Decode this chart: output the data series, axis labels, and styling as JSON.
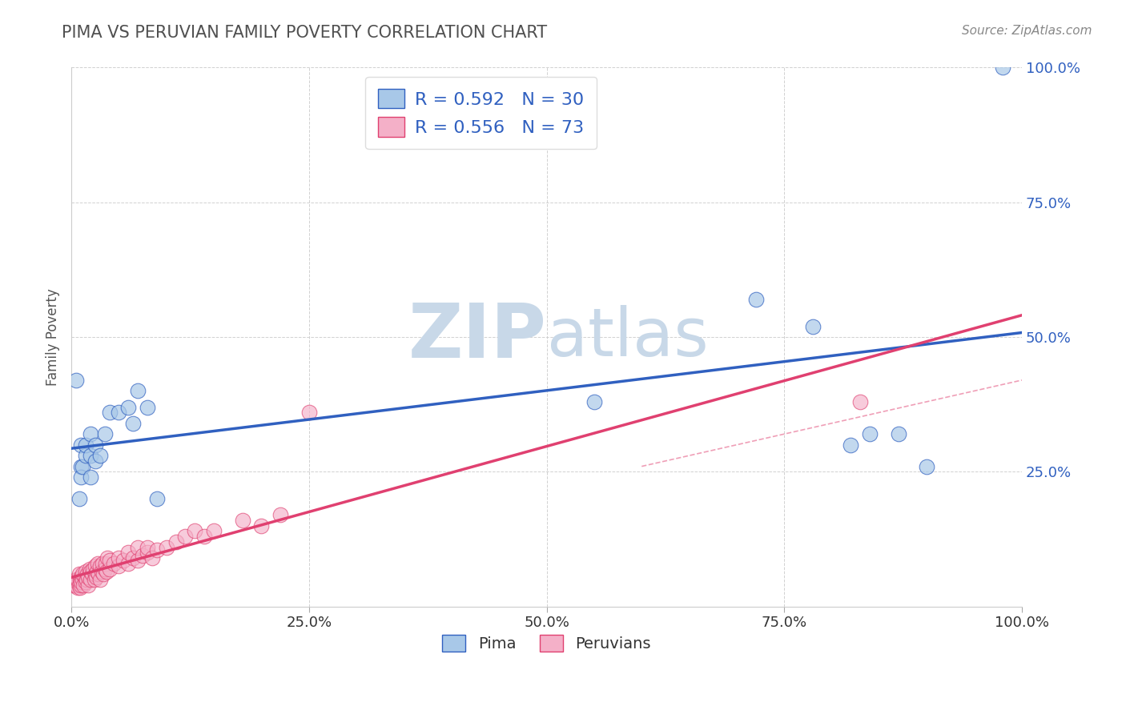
{
  "title": "PIMA VS PERUVIAN FAMILY POVERTY CORRELATION CHART",
  "source_text": "Source: ZipAtlas.com",
  "ylabel": "Family Poverty",
  "xlim": [
    0,
    1.0
  ],
  "ylim": [
    0,
    1.0
  ],
  "xticks": [
    0.0,
    0.25,
    0.5,
    0.75,
    1.0
  ],
  "yticks": [
    0.25,
    0.5,
    0.75,
    1.0
  ],
  "xticklabels": [
    "0.0%",
    "25.0%",
    "50.0%",
    "75.0%",
    "100.0%"
  ],
  "yticklabels": [
    "25.0%",
    "50.0%",
    "75.0%",
    "100.0%"
  ],
  "pima_R": 0.592,
  "pima_N": 30,
  "peruvian_R": 0.556,
  "peruvian_N": 73,
  "pima_color": "#a8c8e8",
  "peruvian_color": "#f4b0c8",
  "pima_line_color": "#3060c0",
  "peruvian_line_color": "#e04070",
  "legend_text_color": "#3060c0",
  "title_color": "#505050",
  "grid_color": "#cccccc",
  "watermark_color": "#c8d8e8",
  "background_color": "#ffffff",
  "pima_x": [
    0.005,
    0.008,
    0.01,
    0.01,
    0.01,
    0.012,
    0.015,
    0.015,
    0.02,
    0.02,
    0.02,
    0.025,
    0.025,
    0.03,
    0.035,
    0.04,
    0.05,
    0.06,
    0.065,
    0.07,
    0.08,
    0.09,
    0.55,
    0.72,
    0.78,
    0.82,
    0.84,
    0.87,
    0.9,
    0.98
  ],
  "pima_y": [
    0.42,
    0.2,
    0.26,
    0.24,
    0.3,
    0.26,
    0.28,
    0.3,
    0.24,
    0.28,
    0.32,
    0.27,
    0.3,
    0.28,
    0.32,
    0.36,
    0.36,
    0.37,
    0.34,
    0.4,
    0.37,
    0.2,
    0.38,
    0.57,
    0.52,
    0.3,
    0.32,
    0.32,
    0.26,
    1.0
  ],
  "peruvian_x": [
    0.002,
    0.003,
    0.004,
    0.005,
    0.005,
    0.006,
    0.007,
    0.007,
    0.008,
    0.008,
    0.009,
    0.009,
    0.01,
    0.01,
    0.01,
    0.012,
    0.012,
    0.013,
    0.014,
    0.015,
    0.015,
    0.016,
    0.017,
    0.018,
    0.018,
    0.019,
    0.02,
    0.02,
    0.022,
    0.023,
    0.024,
    0.025,
    0.025,
    0.026,
    0.027,
    0.028,
    0.029,
    0.03,
    0.03,
    0.032,
    0.033,
    0.034,
    0.035,
    0.036,
    0.037,
    0.038,
    0.04,
    0.04,
    0.045,
    0.05,
    0.05,
    0.055,
    0.06,
    0.06,
    0.065,
    0.07,
    0.07,
    0.075,
    0.08,
    0.08,
    0.085,
    0.09,
    0.1,
    0.11,
    0.12,
    0.13,
    0.14,
    0.15,
    0.18,
    0.2,
    0.22,
    0.25,
    0.83
  ],
  "peruvian_y": [
    0.04,
    0.04,
    0.04,
    0.05,
    0.04,
    0.045,
    0.035,
    0.05,
    0.04,
    0.06,
    0.035,
    0.05,
    0.04,
    0.055,
    0.045,
    0.05,
    0.06,
    0.04,
    0.055,
    0.045,
    0.065,
    0.05,
    0.06,
    0.04,
    0.055,
    0.07,
    0.05,
    0.065,
    0.06,
    0.07,
    0.05,
    0.06,
    0.075,
    0.055,
    0.065,
    0.08,
    0.06,
    0.05,
    0.075,
    0.065,
    0.08,
    0.06,
    0.07,
    0.08,
    0.065,
    0.09,
    0.07,
    0.085,
    0.08,
    0.075,
    0.09,
    0.085,
    0.08,
    0.1,
    0.09,
    0.085,
    0.11,
    0.095,
    0.1,
    0.11,
    0.09,
    0.105,
    0.11,
    0.12,
    0.13,
    0.14,
    0.13,
    0.14,
    0.16,
    0.15,
    0.17,
    0.36,
    0.38
  ],
  "pima_line_params": [
    0.36,
    0.195
  ],
  "peruvian_line_params": [
    0.35,
    0.02
  ],
  "dashed_line_params": [
    0.4,
    0.02
  ],
  "figsize": [
    14.06,
    8.92
  ],
  "dpi": 100
}
